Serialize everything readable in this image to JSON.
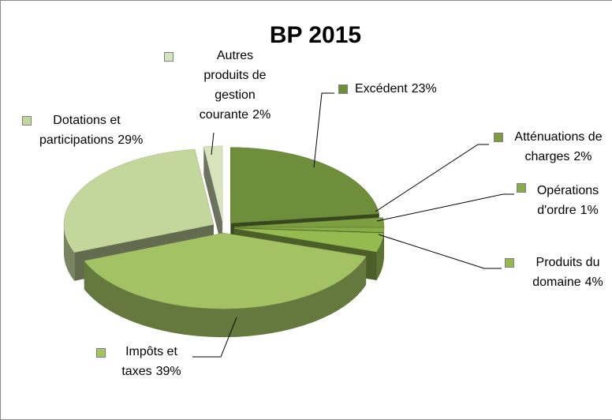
{
  "chart_data": {
    "type": "pie3d",
    "title": "BP 2015",
    "categories": [
      "Excédent",
      "Atténuations de charges",
      "Opérations d'ordre",
      "Produits du domaine",
      "Impôts et taxes",
      "Dotations et participations",
      "Autres produits de gestion courante"
    ],
    "values": [
      23,
      2,
      1,
      4,
      39,
      29,
      2
    ],
    "value_labels": [
      "23%",
      "2%",
      "1%",
      "4%",
      "39%",
      "29%",
      "2%"
    ],
    "colors": [
      "#6f8e3c",
      "#7d9e41",
      "#89ad46",
      "#95bb50",
      "#a3c264",
      "#c3d69b",
      "#d7e4bd"
    ]
  }
}
